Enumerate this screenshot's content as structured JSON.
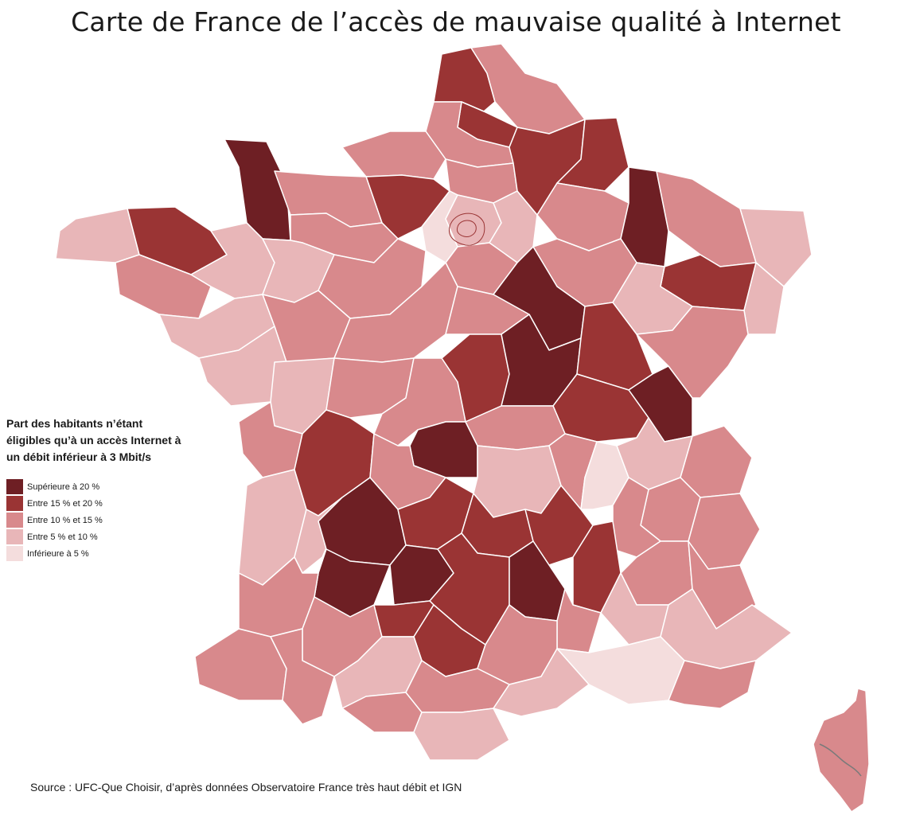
{
  "title": "Carte de France de l’accès de mauvaise qualité à Internet",
  "legend": {
    "title": "Part des habitants n’étant éligibles qu’à un accès Internet à un débit inférieur à 3 Mbit/s",
    "items": [
      {
        "label": "Supérieure à 20 %",
        "color": "#6e1f24"
      },
      {
        "label": "Entre 15 % et 20 %",
        "color": "#9a3434"
      },
      {
        "label": "Entre 10 % et 15 %",
        "color": "#d8898c"
      },
      {
        "label": "Entre 5 % et 10 %",
        "color": "#e8b6b8"
      },
      {
        "label": "Inférieure à 5 %",
        "color": "#f4dddd"
      }
    ]
  },
  "source": "Source : UFC-Que Choisir, d’après données Observatoire France très haut débit et IGN",
  "map": {
    "border_color": "#ffffff",
    "corsica_river_color": "#7a7a7a"
  }
}
